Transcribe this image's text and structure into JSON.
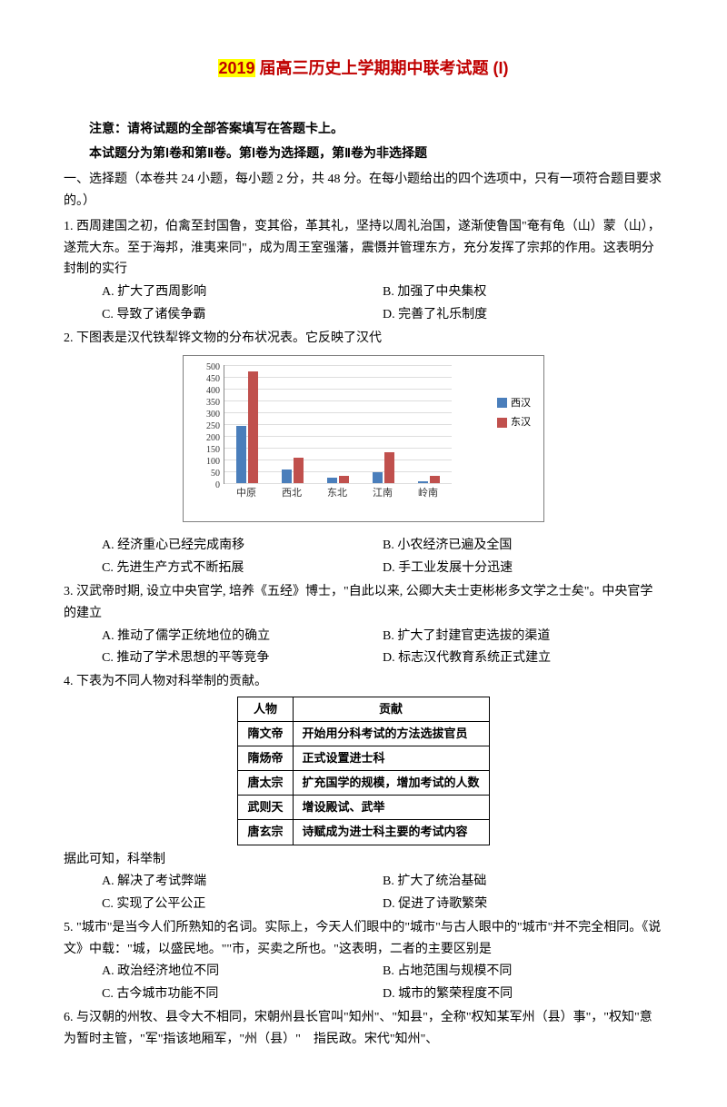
{
  "title_prefix": "2019",
  "title_rest": " 届高三历史上学期期中联考试题 (I)",
  "instr1": "注意：请将试题的全部答案填写在答题卡上。",
  "instr2": "本试题分为第Ⅰ卷和第Ⅱ卷。第Ⅰ卷为选择题，第Ⅱ卷为非选择题",
  "section": "一、选择题（本卷共 24 小题，每小题 2 分，共 48 分。在每小题给出的四个选项中，只有一项符合题目要求的。）",
  "q1": "1. 西周建国之初，伯禽至封国鲁，变其俗，革其礼，坚持以周礼治国，遂渐使鲁国\"奄有龟（山）蒙（山），遂荒大东。至于海邦，淮夷来同\"，成为周王室强藩，震慑并管理东方，充分发挥了宗邦的作用。这表明分封制的实行",
  "q1a": "A. 扩大了西周影响",
  "q1b": "B. 加强了中央集权",
  "q1c": "C. 导致了诸侯争霸",
  "q1d": "D. 完善了礼乐制度",
  "q2": "2. 下图表是汉代铁犁铧文物的分布状况表。它反映了汉代",
  "q2a": "A. 经济重心已经完成南移",
  "q2b": "B. 小农经济已遍及全国",
  "q2c": "C. 先进生产方式不断拓展",
  "q2d": "D. 手工业发展十分迅速",
  "q3": "3. 汉武帝时期, 设立中央官学, 培养《五经》博士，\"自此以来, 公卿大夫士吏彬彬多文学之士矣\"。中央官学的建立",
  "q3a": "A. 推动了儒学正统地位的确立",
  "q3b": "B. 扩大了封建官吏选拔的渠道",
  "q3c": "C. 推动了学术思想的平等竞争",
  "q3d": "D. 标志汉代教育系统正式建立",
  "q4": "4. 下表为不同人物对科举制的贡献。",
  "table_h1": "人物",
  "table_h2": "贡献",
  "r1a": "隋文帝",
  "r1b": "开始用分科考试的方法选拔官员",
  "r2a": "隋炀帝",
  "r2b": "正式设置进士科",
  "r3a": "唐太宗",
  "r3b": "扩充国学的规模，增加考试的人数",
  "r4a": "武则天",
  "r4b": "增设殿试、武举",
  "r5a": "唐玄宗",
  "r5b": "诗赋成为进士科主要的考试内容",
  "q4tail": "据此可知，科举制",
  "q4a": "A. 解决了考试弊端",
  "q4b": "B. 扩大了统治基础",
  "q4c": "C. 实现了公平公正",
  "q4d": "D. 促进了诗歌繁荣",
  "q5": "5. \"城市\"是当今人们所熟知的名词。实际上，今天人们眼中的\"城市\"与古人眼中的\"城市\"并不完全相同。《说文》中载：\"城，以盛民地。\"\"市，买卖之所也。\"这表明，二者的主要区别是",
  "q5a": "A. 政治经济地位不同",
  "q5b": "B. 占地范围与规模不同",
  "q5c": "C. 古今城市功能不同",
  "q5d": "D. 城市的繁荣程度不同",
  "q6": "6. 与汉朝的州牧、县令大不相同，宋朝州县长官叫\"知州\"、\"知县\"，全称\"权知某军州（县）事\"，\"权知\"意为暂时主管，\"军\"指该地厢军，\"州（县）\"　指民政。宋代\"知州\"、",
  "chart": {
    "type": "bar",
    "series": [
      {
        "name": "西汉",
        "color": "#4a7ebb"
      },
      {
        "name": "东汉",
        "color": "#c0504d"
      }
    ],
    "categories": [
      "中原",
      "西北",
      "东北",
      "江南",
      "岭南"
    ],
    "values_west": [
      240,
      55,
      20,
      45,
      5
    ],
    "values_east": [
      470,
      105,
      30,
      130,
      30
    ],
    "ymax": 500,
    "ystep": 50,
    "grid_color": "#dddddd",
    "bg": "#ffffff"
  },
  "legend_west": "西汉",
  "legend_east": "东汉"
}
